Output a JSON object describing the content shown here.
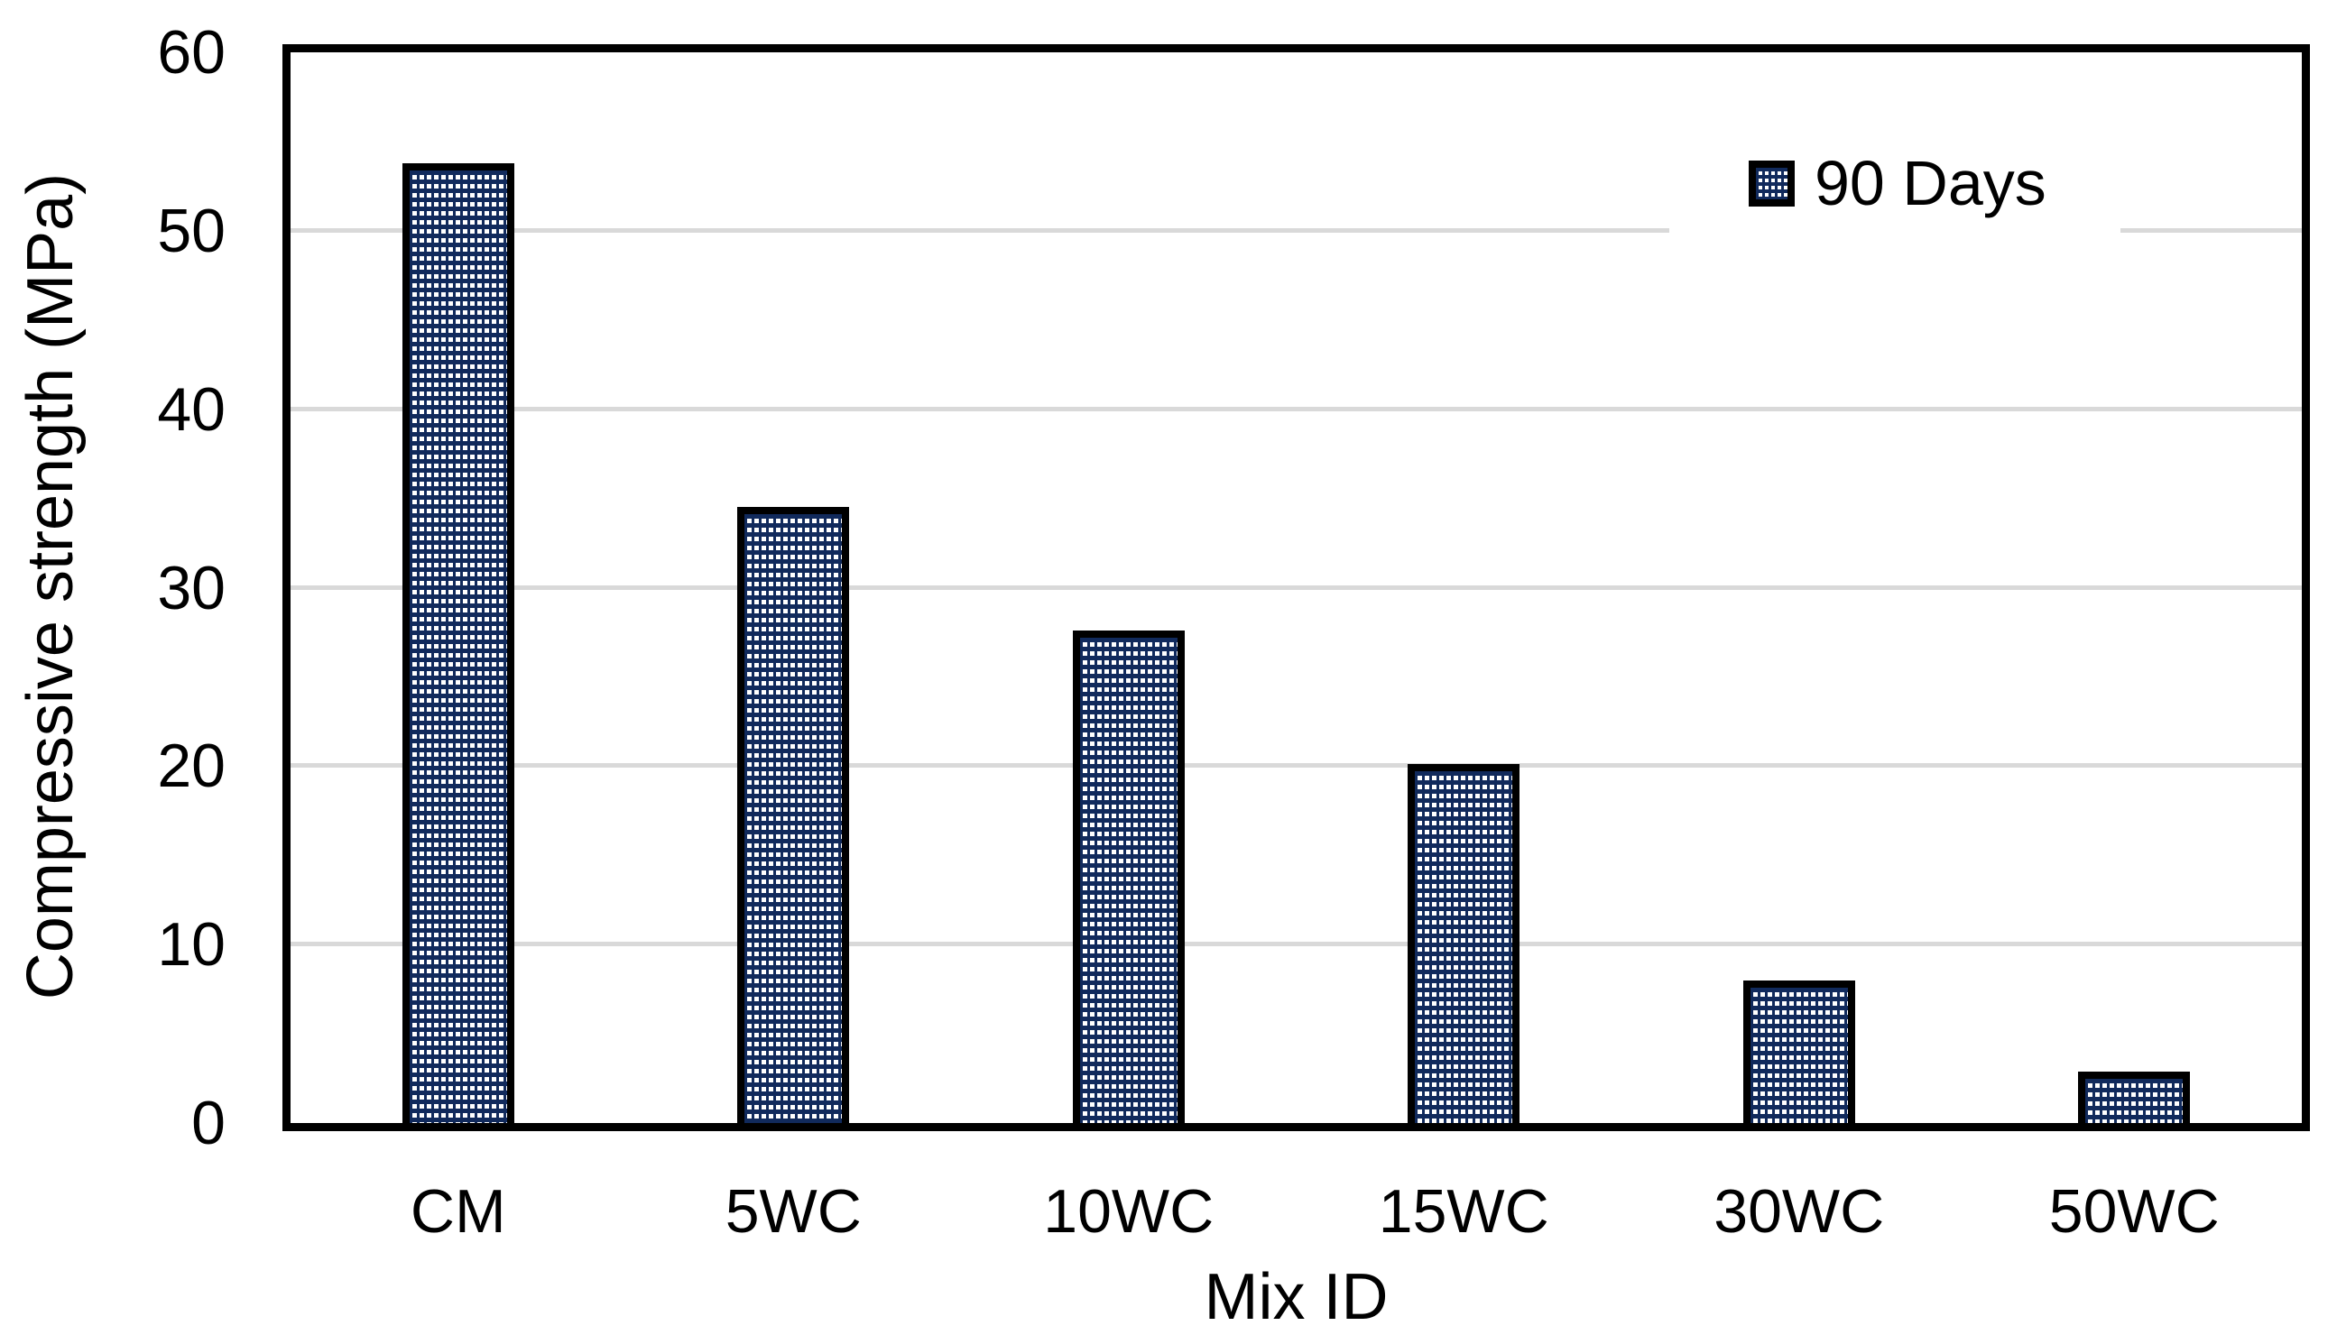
{
  "figure": {
    "background_color": "#FFFFFF",
    "frame_color": "#000000",
    "gridline_color": "#D9D9D9",
    "bar_fill_color": "#112A5C",
    "bar_pattern": "small white dotted grid on navy",
    "bar_border_color": "#000000",
    "text_color": "#000000"
  },
  "chart_data": {
    "type": "bar",
    "title": "",
    "categories": [
      "CM",
      "5WC",
      "10WC",
      "15WC",
      "30WC",
      "50WC"
    ],
    "series": [
      {
        "name": "90 Days",
        "values": [
          53.8,
          34.5,
          27.6,
          20.1,
          8.0,
          2.9
        ]
      }
    ],
    "xlabel": "Mix ID",
    "ylabel": "Compressive strength (MPa)",
    "ylim": [
      0,
      60
    ],
    "yticks": [
      0,
      10,
      20,
      30,
      40,
      50,
      60
    ],
    "grid": "horizontal",
    "legend_position": "inside-top-right"
  }
}
